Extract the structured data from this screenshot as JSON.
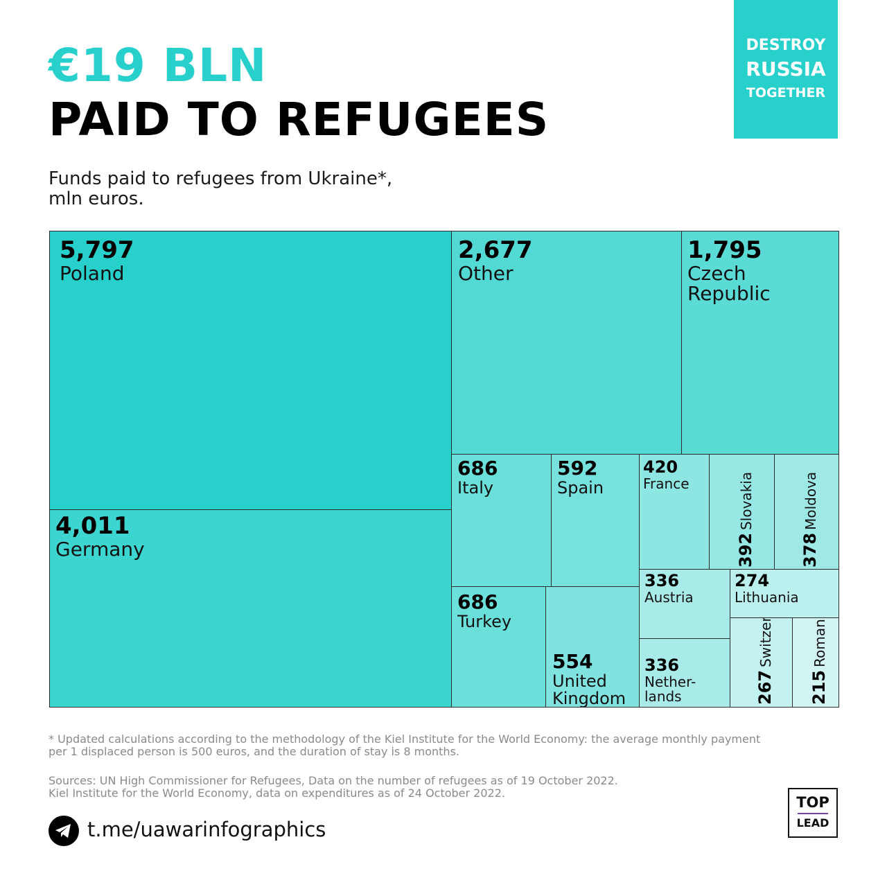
{
  "header": {
    "amount": "€19 BLN",
    "title": "PAID TO REFUGEES",
    "subtitle_line1": "Funds paid to refugees from Ukraine*,",
    "subtitle_line2": "mln euros."
  },
  "badge": {
    "line1": "DESTROY",
    "line2": "RUSSIA",
    "line3": "TOGETHER"
  },
  "chart_data": {
    "type": "treemap",
    "title": "Funds paid to refugees from Ukraine*, mln euros.",
    "items": [
      {
        "label": "Poland",
        "value": 5797,
        "display": "5,797",
        "color": "#28d0cc"
      },
      {
        "label": "Germany",
        "value": 4011,
        "display": "4,011",
        "color": "#3dd5d0"
      },
      {
        "label": "Other",
        "value": 2677,
        "display": "2,677",
        "color": "#52d9d4"
      },
      {
        "label": "Czech Republic",
        "value": 1795,
        "display": "1,795",
        "color": "#5adbd6"
      },
      {
        "label": "Italy",
        "value": 686,
        "display": "686",
        "color": "#6bdfda"
      },
      {
        "label": "Turkey",
        "value": 686,
        "display": "686",
        "color": "#6bdfda"
      },
      {
        "label": "Spain",
        "value": 592,
        "display": "592",
        "color": "#77e1dd"
      },
      {
        "label": "United Kingdom",
        "value": 554,
        "display": "554",
        "color": "#80e3df"
      },
      {
        "label": "France",
        "value": 420,
        "display": "420",
        "color": "#8ee6e2"
      },
      {
        "label": "Slovakia",
        "value": 392,
        "display": "392",
        "color": "#97e8e4"
      },
      {
        "label": "Moldova",
        "value": 378,
        "display": "378",
        "color": "#9ee9e6"
      },
      {
        "label": "Austria",
        "value": 336,
        "display": "336",
        "color": "#a8ebe8"
      },
      {
        "label": "Netherlands",
        "value": 336,
        "display": "336",
        "color": "#a8ebe8"
      },
      {
        "label": "Lithuania",
        "value": 274,
        "display": "274",
        "color": "#bbf0ee"
      },
      {
        "label": "Switzerland",
        "value": 267,
        "display": "267",
        "color": "#c3f2f0"
      },
      {
        "label": "Romania",
        "value": 215,
        "display": "215",
        "color": "#d2f5f3"
      }
    ],
    "labels": {
      "Poland": "Poland",
      "Germany": "Germany",
      "Other": "Other",
      "Czech Republic": "Czech\nRepublic",
      "Italy": "Italy",
      "Turkey": "Turkey",
      "Spain": "Spain",
      "United Kingdom": "United\nKingdom",
      "France": "France",
      "Slovakia": "Slovakia",
      "Moldova": "Moldova",
      "Austria": "Austria",
      "Netherlands": "Nether-\nlands",
      "Lithuania": "Lithuania",
      "Switzerland": "Switzerland",
      "Romania": "Romania"
    }
  },
  "footer": {
    "note_line1": "* Updated calculations according to the methodology of the Kiel Institute for the World Economy: the average monthly payment",
    "note_line2": "per 1 displaced person is 500 euros, and the duration of stay is 8 months.",
    "sources_line1": "Sources: UN High Commissioner for Refugees, Data on the number of refugees as of 19 October 2022.",
    "sources_line2": "Kiel Institute for the World Economy, data on expenditures as of 24 October 2022.",
    "telegram": "t.me/uawarinfographics"
  },
  "logo": {
    "top": "TOP",
    "bottom": "LEAD"
  }
}
